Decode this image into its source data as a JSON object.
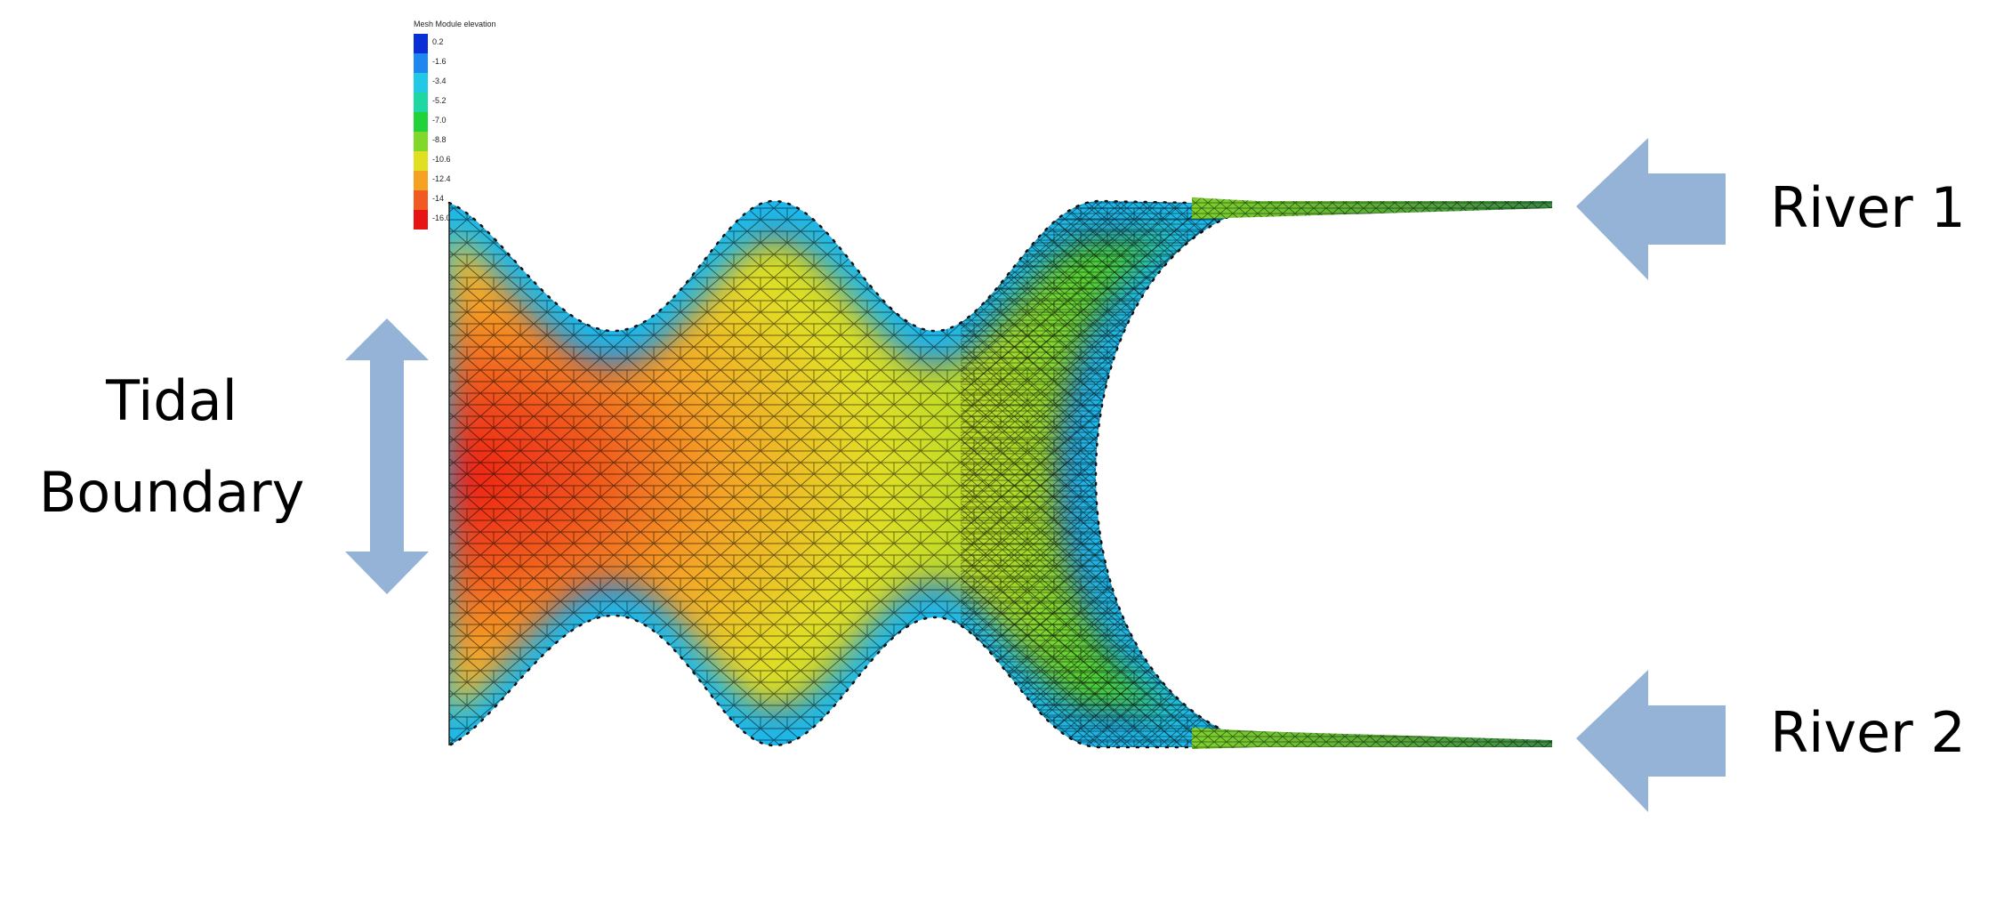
{
  "labels": {
    "tidal_line1": "Tidal",
    "tidal_line2": "Boundary",
    "river1": "River 1",
    "river2": "River 2"
  },
  "legend": {
    "title": "Mesh Module elevation",
    "entries": [
      {
        "label": "0.2",
        "color": "#0a2fd6"
      },
      {
        "label": "-1.6",
        "color": "#1e88f0"
      },
      {
        "label": "-3.4",
        "color": "#22c8e6"
      },
      {
        "label": "-5.2",
        "color": "#1fd7a2"
      },
      {
        "label": "-7.0",
        "color": "#22d23a"
      },
      {
        "label": "-8.8",
        "color": "#7fd82a"
      },
      {
        "label": "-10.6",
        "color": "#e0df22"
      },
      {
        "label": "-12.4",
        "color": "#f5a123"
      },
      {
        "label": "-14",
        "color": "#f15a20"
      },
      {
        "label": "-16.0",
        "color": "#e81414"
      }
    ]
  },
  "colors": {
    "arrow": "#95b3d7",
    "mesh_line": "#000000",
    "deep": "#ee1c16",
    "mid": "#e3e126",
    "shallow": "#1b62e8"
  },
  "icons": [
    "tidal-double-arrow-icon",
    "river-1-arrow-icon",
    "river-2-arrow-icon"
  ]
}
